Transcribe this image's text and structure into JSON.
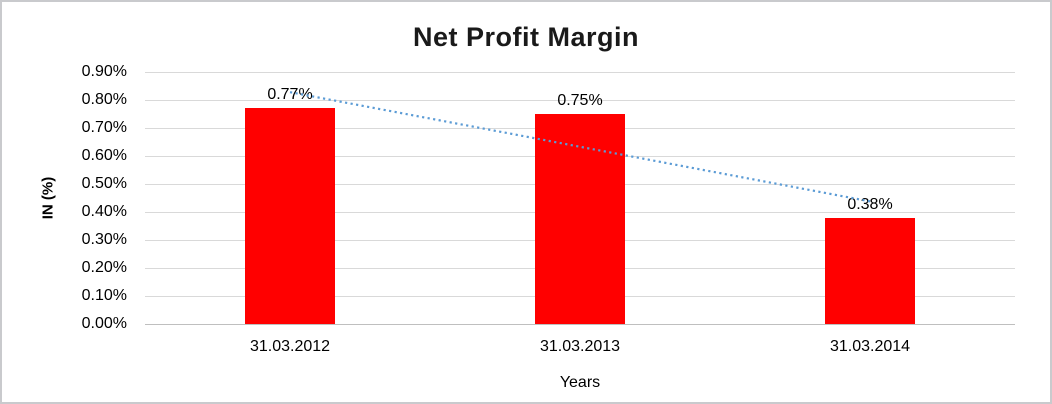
{
  "chart_data": {
    "type": "bar",
    "title": "Net Profit Margin",
    "xlabel": "Years",
    "ylabel": "IN (%)",
    "categories": [
      "31.03.2012",
      "31.03.2013",
      "31.03.2014"
    ],
    "values": [
      0.77,
      0.75,
      0.38
    ],
    "data_labels": [
      "0.77%",
      "0.75%",
      "0.38%"
    ],
    "ylim": [
      0,
      0.9
    ],
    "ytick_step": 0.1,
    "ytick_labels": [
      "0.00%",
      "0.10%",
      "0.20%",
      "0.30%",
      "0.40%",
      "0.50%",
      "0.60%",
      "0.70%",
      "0.80%",
      "0.90%"
    ],
    "grid": true,
    "legend": "none",
    "bar_color": "#ff0000",
    "gridline_color": "#d9d9d9",
    "axis_line_color": "#bfbfbf",
    "text_color": "#000000",
    "trendline": {
      "type": "linear",
      "style": "dotted",
      "color": "#5b9bd5",
      "start_value": 0.828,
      "end_value": 0.438
    }
  }
}
